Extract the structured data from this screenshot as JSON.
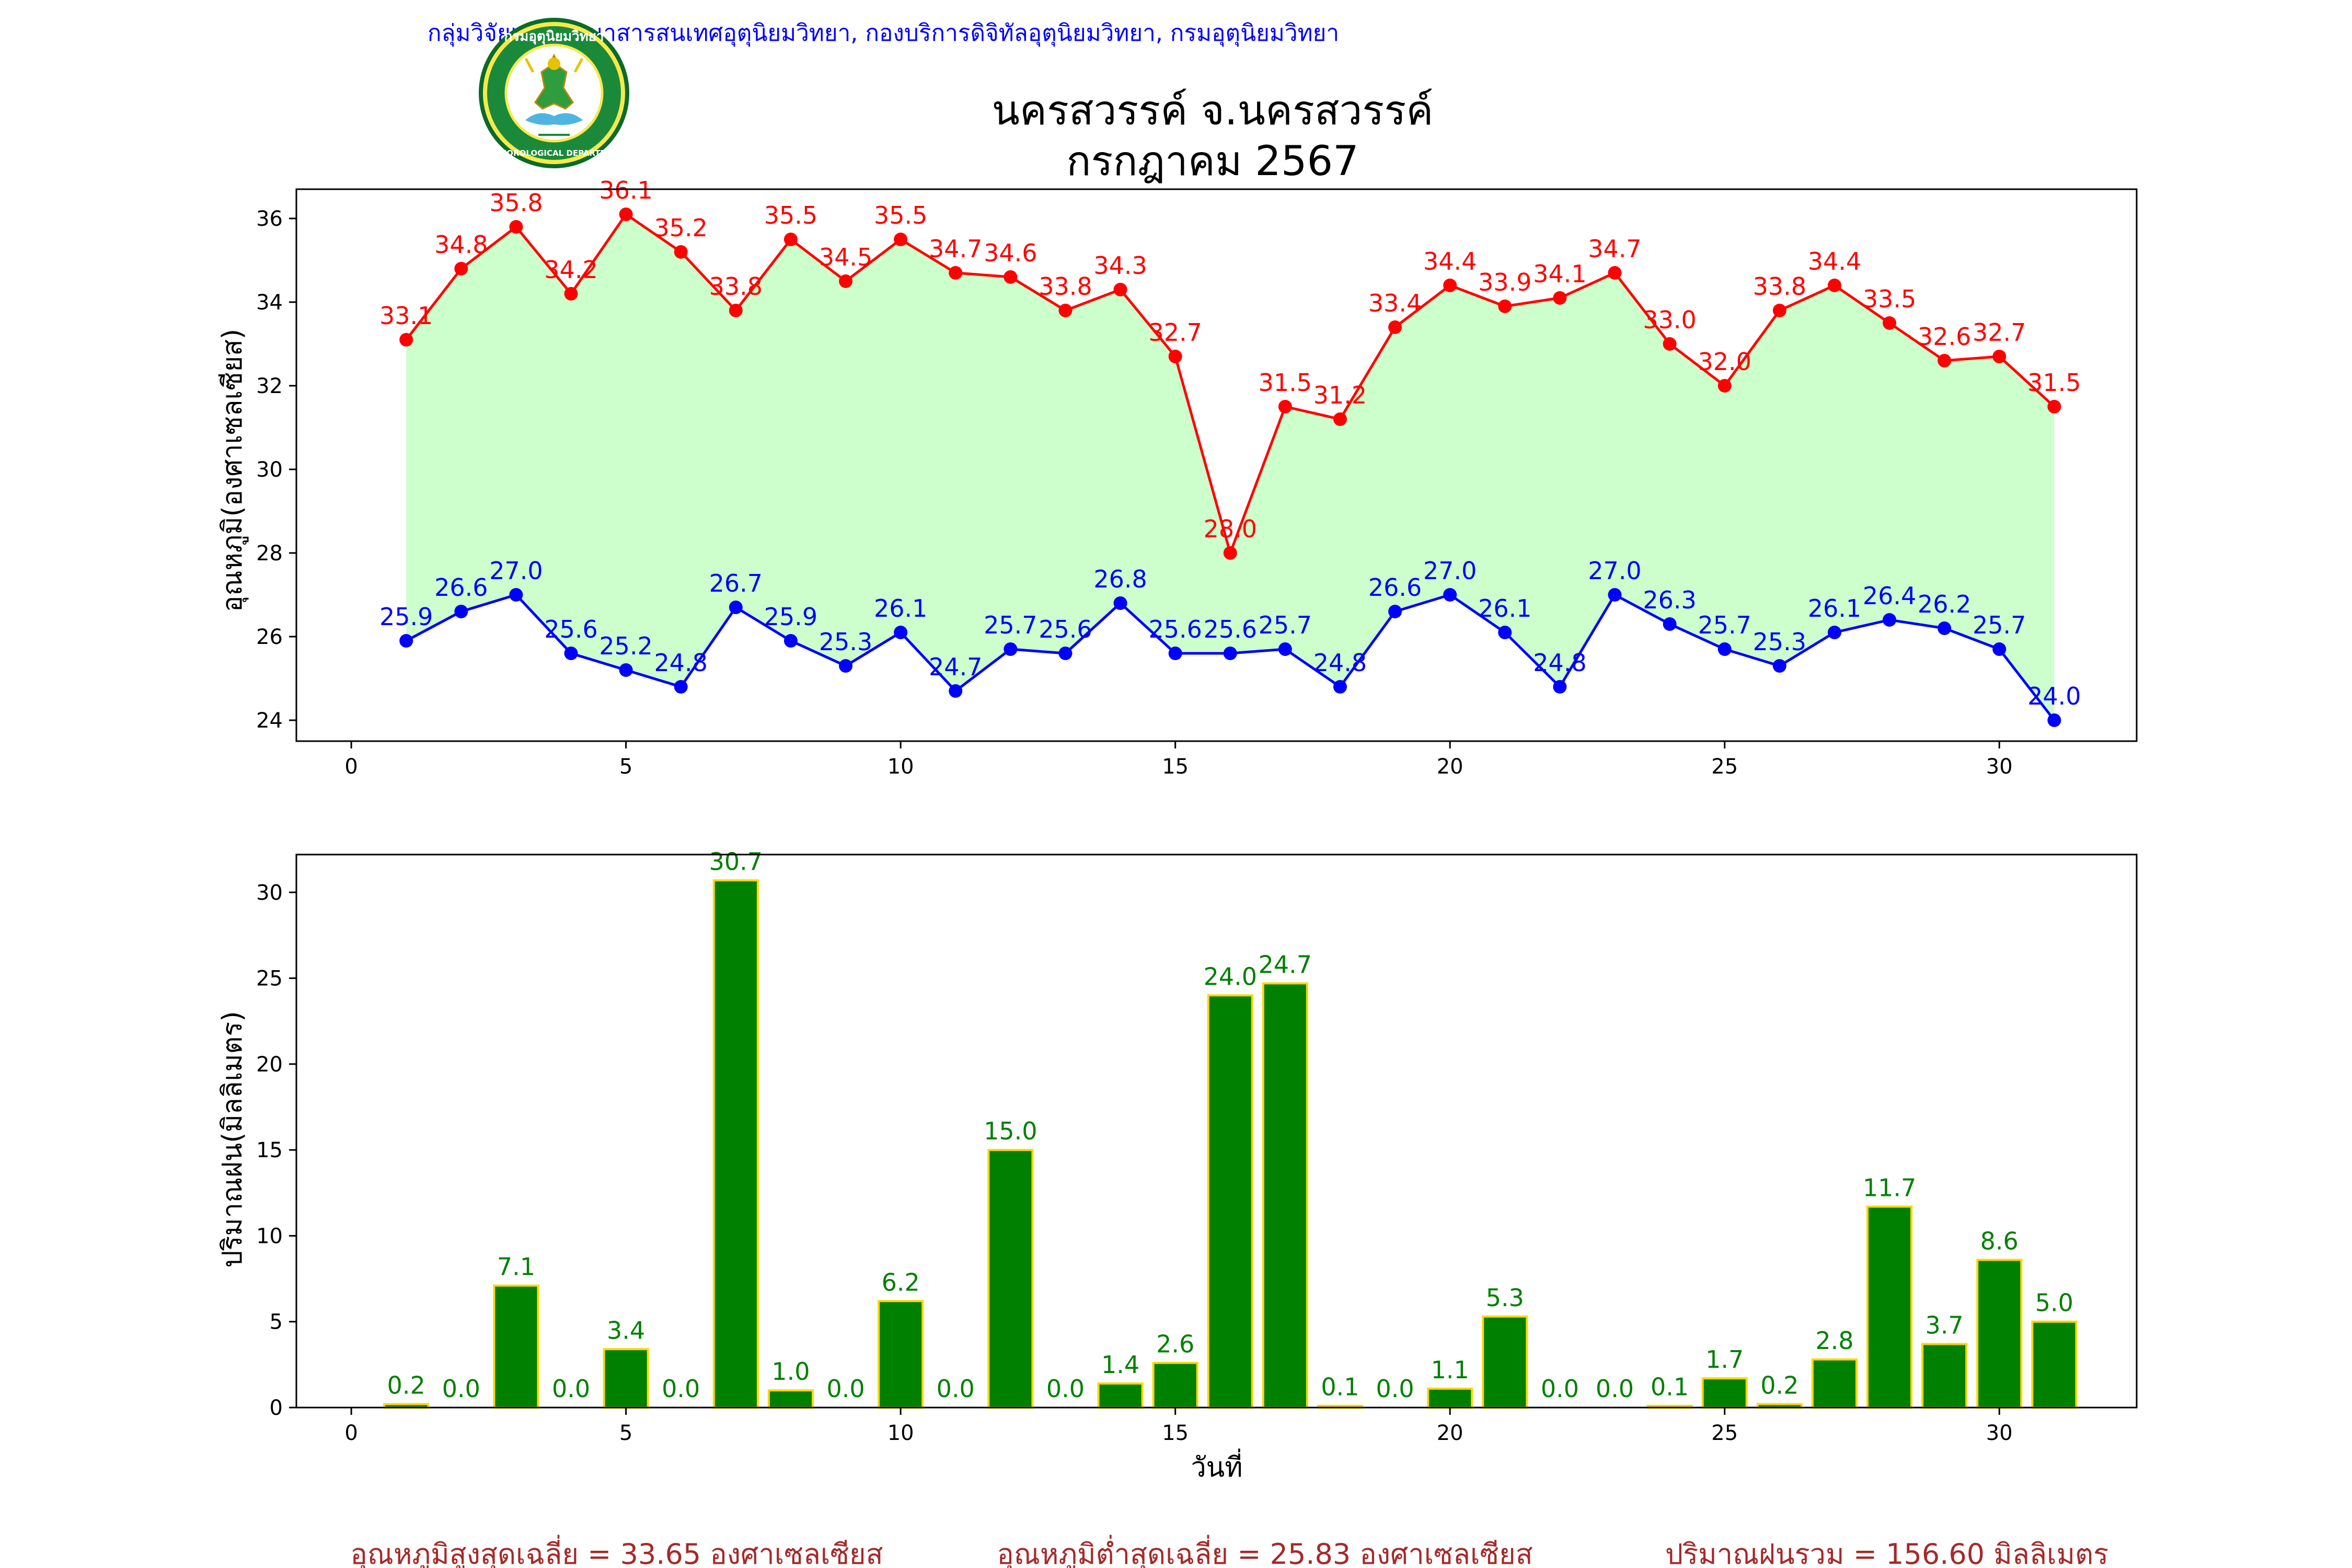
{
  "header": "กลุ่มวิจัยและพัฒนาสารสนเทศอุตุนิยมวิทยา, กองบริการดิจิทัลอุตุนิยมวิทยา, กรมอุตุนิยมวิทยา",
  "logo": {
    "text": "กรมอุตุนิยมวิทยา",
    "subtext": "METEOROLOGICAL DEPARTMENT"
  },
  "title_line1": "นครสวรรค์  จ.นครสวรรค์",
  "title_line2": "กรกฎาคม 2567",
  "colors": {
    "max": "#ff0000",
    "min": "#0000ff",
    "fill": "#ccffcc",
    "bar": "#008000",
    "bar_edge": "#ffd700",
    "stats": "#a52a2a"
  },
  "chart_data": [
    {
      "type": "line",
      "ylabel": "อุณหภูมิ(องศาเซลเซียส)",
      "xlim": [
        -1,
        32.5
      ],
      "ylim": [
        23.5,
        36.7
      ],
      "xticks": [
        0,
        5,
        10,
        15,
        20,
        25,
        30
      ],
      "yticks": [
        24,
        26,
        28,
        30,
        32,
        34,
        36
      ],
      "fill_between": true,
      "x": [
        1,
        2,
        3,
        4,
        5,
        6,
        7,
        8,
        9,
        10,
        11,
        12,
        13,
        14,
        15,
        16,
        17,
        18,
        19,
        20,
        21,
        22,
        23,
        24,
        25,
        26,
        27,
        28,
        29,
        30,
        31
      ],
      "series": [
        {
          "values": [
            33.1,
            34.8,
            35.8,
            34.2,
            36.1,
            35.2,
            33.8,
            35.5,
            34.5,
            35.5,
            34.7,
            34.6,
            33.8,
            34.3,
            32.7,
            28.0,
            31.5,
            31.2,
            33.4,
            34.4,
            33.9,
            34.1,
            34.7,
            33.0,
            32.0,
            33.8,
            34.4,
            33.5,
            32.6,
            32.7,
            31.5
          ]
        },
        {
          "values": [
            25.9,
            26.6,
            27.0,
            25.6,
            25.2,
            24.8,
            26.7,
            25.9,
            25.3,
            26.1,
            24.7,
            25.7,
            25.6,
            26.8,
            25.6,
            25.6,
            25.7,
            24.8,
            26.6,
            27.0,
            26.1,
            24.8,
            27.0,
            26.3,
            25.7,
            25.3,
            26.1,
            26.4,
            26.2,
            25.7,
            24.0
          ]
        }
      ]
    },
    {
      "type": "bar",
      "ylabel": "ปริมาณฝน(มิลลิเมตร)",
      "xlabel": "วันที่",
      "xlim": [
        -1,
        32.5
      ],
      "ylim": [
        0,
        32.2
      ],
      "xticks": [
        0,
        5,
        10,
        15,
        20,
        25,
        30
      ],
      "yticks": [
        0,
        5,
        10,
        15,
        20,
        25,
        30
      ],
      "categories": [
        1,
        2,
        3,
        4,
        5,
        6,
        7,
        8,
        9,
        10,
        11,
        12,
        13,
        14,
        15,
        16,
        17,
        18,
        19,
        20,
        21,
        22,
        23,
        24,
        25,
        26,
        27,
        28,
        29,
        30,
        31
      ],
      "values": [
        0.2,
        0.0,
        7.1,
        0.0,
        3.4,
        0.0,
        30.7,
        1.0,
        0.0,
        6.2,
        0.0,
        15.0,
        0.0,
        1.4,
        2.6,
        24.0,
        24.7,
        0.1,
        0.0,
        1.1,
        5.3,
        0.0,
        0.0,
        0.1,
        1.7,
        0.2,
        2.8,
        11.7,
        3.7,
        8.6,
        5.0
      ]
    }
  ],
  "stats": {
    "avg_max": "อุณหภูมิสูงสุดเฉลี่ย = 33.65 องศาเซลเซียส",
    "avg_min": "อุณหภูมิต่ำสุดเฉลี่ย = 25.83 องศาเซลเซียส",
    "total_rain": "ปริมาณฝนรวม = 156.60 มิลลิเมตร"
  }
}
